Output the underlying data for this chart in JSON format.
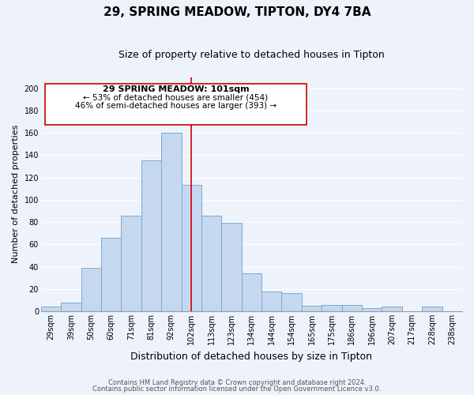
{
  "title": "29, SPRING MEADOW, TIPTON, DY4 7BA",
  "subtitle": "Size of property relative to detached houses in Tipton",
  "xlabel": "Distribution of detached houses by size in Tipton",
  "ylabel": "Number of detached properties",
  "bar_labels": [
    "29sqm",
    "39sqm",
    "50sqm",
    "60sqm",
    "71sqm",
    "81sqm",
    "92sqm",
    "102sqm",
    "113sqm",
    "123sqm",
    "134sqm",
    "144sqm",
    "154sqm",
    "165sqm",
    "175sqm",
    "186sqm",
    "196sqm",
    "207sqm",
    "217sqm",
    "228sqm",
    "238sqm"
  ],
  "bar_values": [
    4,
    8,
    39,
    66,
    86,
    135,
    160,
    113,
    86,
    79,
    34,
    18,
    16,
    5,
    6,
    6,
    3,
    4,
    0,
    4,
    0
  ],
  "bar_color": "#c5d8f0",
  "bar_edge_color": "#7aaad0",
  "vline_x": 7,
  "vline_color": "#cc0000",
  "annotation_title": "29 SPRING MEADOW: 101sqm",
  "annotation_line1": "← 53% of detached houses are smaller (454)",
  "annotation_line2": "46% of semi-detached houses are larger (393) →",
  "annotation_box_color": "#ffffff",
  "annotation_box_edge": "#cc0000",
  "ylim": [
    0,
    210
  ],
  "yticks": [
    0,
    20,
    40,
    60,
    80,
    100,
    120,
    140,
    160,
    180,
    200
  ],
  "footer1": "Contains HM Land Registry data © Crown copyright and database right 2024.",
  "footer2": "Contains public sector information licensed under the Open Government Licence v3.0.",
  "bg_color": "#eef3fb",
  "grid_color": "#ffffff",
  "title_fontsize": 11,
  "subtitle_fontsize": 9,
  "tick_fontsize": 7,
  "ylabel_fontsize": 8,
  "xlabel_fontsize": 9,
  "footer_fontsize": 6,
  "ann_title_fontsize": 8,
  "ann_text_fontsize": 7.5
}
